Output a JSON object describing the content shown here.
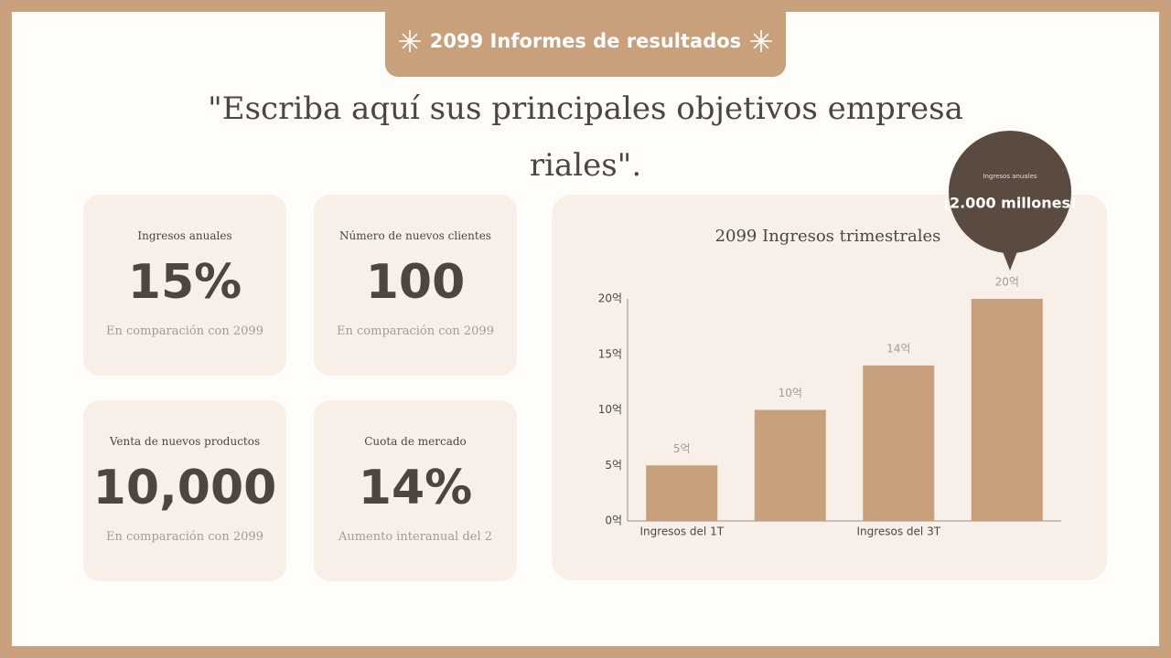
{
  "header": {
    "title": "2099 Informes de resultados"
  },
  "headline": "\"Escriba aquí sus principales objetivos empresariales\".",
  "cards": [
    {
      "label": "Ingresos anuales",
      "value": "15%",
      "note": "En comparación con 2099"
    },
    {
      "label": "Número de nuevos clientes",
      "value": "100",
      "note": "En comparación con 2099"
    },
    {
      "label": "Venta de nuevos productos",
      "value": "10,000",
      "note": "En comparación con 2099"
    },
    {
      "label": "Cuota de mercado",
      "value": "14%",
      "note": "Aumento interanual del 2"
    }
  ],
  "callout": {
    "label": "Ingresos anuales",
    "value": "¡2.000 millones!"
  },
  "chart_data": {
    "type": "bar",
    "title": "2099 Ingresos trimestrales",
    "categories": [
      "Ingresos del 1T",
      null,
      "Ingresos del 3T",
      null
    ],
    "values": [
      5,
      10,
      14,
      20
    ],
    "value_labels": [
      "5억",
      "10억",
      "14억",
      "20억"
    ],
    "color": "#c9a07c",
    "ylim": [
      0,
      20
    ],
    "yticks": [
      {
        "value": 0,
        "label": "0억"
      },
      {
        "value": 5,
        "label": "5억"
      },
      {
        "value": 10,
        "label": "10억"
      },
      {
        "value": 15,
        "label": "15억"
      },
      {
        "value": 20,
        "label": "20억"
      }
    ],
    "grid": false
  }
}
